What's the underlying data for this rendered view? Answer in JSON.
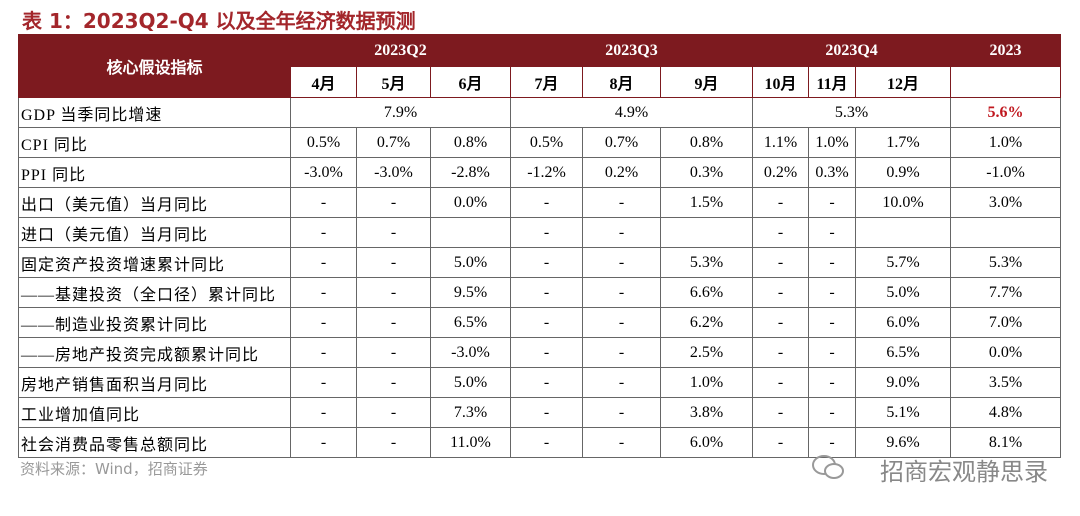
{
  "header": {
    "title": "表 1：2023Q2-Q4 以及全年经济数据预测"
  },
  "table": {
    "corner": "核心假设指标",
    "groups": [
      "2023Q2",
      "2023Q3",
      "2023Q4",
      "2023"
    ],
    "months": [
      "4月",
      "5月",
      "6月",
      "7月",
      "8月",
      "9月",
      "10月",
      "11月",
      "12月"
    ],
    "rows": [
      {
        "label": "GDP 当季同比增速",
        "cells": [
          "7.9%",
          "4.9%",
          "5.3%",
          "5.6%"
        ]
      },
      {
        "label": "CPI 同比",
        "cells": [
          "0.5%",
          "0.7%",
          "0.8%",
          "0.5%",
          "0.7%",
          "0.8%",
          "1.1%",
          "1.0%",
          "1.7%",
          "1.0%"
        ]
      },
      {
        "label": "PPI 同比",
        "cells": [
          "-3.0%",
          "-3.0%",
          "-2.8%",
          "-1.2%",
          "0.2%",
          "0.3%",
          "0.2%",
          "0.3%",
          "0.9%",
          "-1.0%"
        ]
      },
      {
        "label": "出口（美元值）当月同比",
        "cells": [
          "-",
          "-",
          "0.0%",
          "-",
          "-",
          "1.5%",
          "-",
          "-",
          "10.0%",
          "3.0%"
        ]
      },
      {
        "label": "进口（美元值）当月同比",
        "cells": [
          "-",
          "-",
          null,
          "-",
          "-",
          null,
          "-",
          "-",
          null,
          null
        ]
      },
      {
        "label": "固定资产投资增速累计同比",
        "cells": [
          "-",
          "-",
          "5.0%",
          "-",
          "-",
          "5.3%",
          "-",
          "-",
          "5.7%",
          "5.3%"
        ]
      },
      {
        "label": "——基建投资（全口径）累计同比",
        "cells": [
          "-",
          "-",
          "9.5%",
          "-",
          "-",
          "6.6%",
          "-",
          "-",
          "5.0%",
          "7.7%"
        ]
      },
      {
        "label": "——制造业投资累计同比",
        "cells": [
          "-",
          "-",
          "6.5%",
          "-",
          "-",
          "6.2%",
          "-",
          "-",
          "6.0%",
          "7.0%"
        ]
      },
      {
        "label": "——房地产投资完成额累计同比",
        "cells": [
          "-",
          "-",
          "-3.0%",
          "-",
          "-",
          "2.5%",
          "-",
          "-",
          "6.5%",
          "0.0%"
        ]
      },
      {
        "label": "房地产销售面积当月同比",
        "cells": [
          "-",
          "-",
          "5.0%",
          "-",
          "-",
          "1.0%",
          "-",
          "-",
          "9.0%",
          "3.5%"
        ]
      },
      {
        "label": "工业增加值同比",
        "cells": [
          "-",
          "-",
          "7.3%",
          "-",
          "-",
          "3.8%",
          "-",
          "-",
          "5.1%",
          "4.8%"
        ]
      },
      {
        "label": "社会消费品零售总额同比",
        "cells": [
          "-",
          "-",
          "11.0%",
          "-",
          "-",
          "6.0%",
          "-",
          "-",
          "9.6%",
          "8.1%"
        ]
      }
    ]
  },
  "footer": {
    "source": "资料来源：Wind，招商证券",
    "watermark": "招商宏观静思录"
  }
}
